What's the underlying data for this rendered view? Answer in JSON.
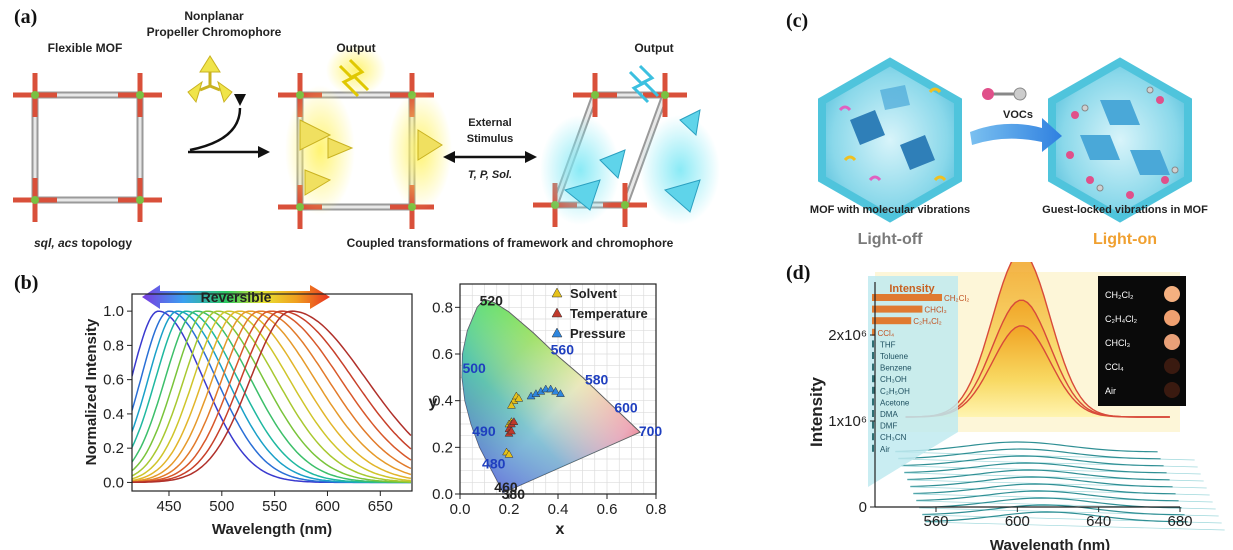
{
  "labels": {
    "a": "(a)",
    "b": "(b)",
    "c": "(c)",
    "d": "(d)"
  },
  "panel_a": {
    "flexible_mof": "Flexible MOF",
    "chromophore_line1": "Nonplanar",
    "chromophore_line2": "Propeller Chromophore",
    "output1": "Output",
    "output2": "Output",
    "stimulus_line1": "External",
    "stimulus_line2": "Stimulus",
    "stimulus_params": "T, P, Sol.",
    "topology_italic": "sql, acs",
    "topology_rest": " topology",
    "coupled": "Coupled transformations of framework and chromophore"
  },
  "panel_c": {
    "vocs": "VOCs",
    "left_caption": "MOF with molecular vibrations",
    "right_caption": "Guest-locked vibrations in MOF",
    "light_off": "Light-off",
    "light_on": "Light-on",
    "colors": {
      "light_off": "#7a7a7a",
      "light_on": "#f0a030",
      "hexagon": "#4fc4dc"
    }
  },
  "chart_data": [
    {
      "type": "line",
      "panel": "b-left",
      "xlabel": "Wavelength (nm)",
      "ylabel": "Normalized Intensity",
      "arrow_label": "Reversible",
      "xlim": [
        415,
        680
      ],
      "ylim": [
        -0.05,
        1.1
      ],
      "x_ticks": [
        "450",
        "500",
        "550",
        "600",
        "650"
      ],
      "y_ticks": [
        "0.0",
        "0.2",
        "0.4",
        "0.6",
        "0.8",
        "1.0"
      ],
      "peak_wavelengths_nm": [
        440,
        450,
        458,
        466,
        476,
        486,
        496,
        506,
        516,
        526,
        536,
        546,
        556,
        566
      ],
      "series_colors": [
        "#3a3acf",
        "#2a6fd6",
        "#1aa0c8",
        "#1fb8a0",
        "#3cbf6a",
        "#79c43a",
        "#a8c830",
        "#cfc52a",
        "#e2b52a",
        "#e69a2a",
        "#e27a2a",
        "#d8582a",
        "#c8402a",
        "#b0302a"
      ],
      "peak_value": 1.0
    },
    {
      "type": "scatter",
      "panel": "b-right",
      "chart_kind": "CIE 1931 chromaticity",
      "xlabel": "x",
      "ylabel": "y",
      "xlim": [
        0,
        0.8
      ],
      "ylim": [
        0,
        0.9
      ],
      "x_ticks": [
        "0.0",
        "0.2",
        "0.4",
        "0.6",
        "0.8"
      ],
      "y_ticks": [
        "0.0",
        "0.2",
        "0.4",
        "0.6",
        "0.8"
      ],
      "wavelength_labels": [
        {
          "text": "520",
          "x": 0.08,
          "y": 0.83
        },
        {
          "text": "560",
          "x": 0.37,
          "y": 0.62
        },
        {
          "text": "500",
          "x": 0.01,
          "y": 0.54
        },
        {
          "text": "580",
          "x": 0.51,
          "y": 0.49
        },
        {
          "text": "600",
          "x": 0.63,
          "y": 0.37
        },
        {
          "text": "490",
          "x": 0.05,
          "y": 0.27
        },
        {
          "text": "700",
          "x": 0.73,
          "y": 0.27
        },
        {
          "text": "480",
          "x": 0.09,
          "y": 0.13
        },
        {
          "text": "460",
          "x": 0.14,
          "y": 0.03
        },
        {
          "text": "380",
          "x": 0.17,
          "y": 0.0
        }
      ],
      "legend": [
        "Solvent",
        "Temperature",
        "Pressure"
      ],
      "legend_colors": [
        "#e6c21a",
        "#c0392b",
        "#2e86de"
      ],
      "series": [
        {
          "name": "Solvent",
          "points": [
            [
              0.22,
              0.4
            ],
            [
              0.23,
              0.42
            ],
            [
              0.21,
              0.38
            ],
            [
              0.24,
              0.41
            ],
            [
              0.2,
              0.3
            ],
            [
              0.21,
              0.31
            ],
            [
              0.19,
              0.18
            ],
            [
              0.2,
              0.17
            ]
          ]
        },
        {
          "name": "Temperature",
          "points": [
            [
              0.2,
              0.28
            ],
            [
              0.21,
              0.3
            ],
            [
              0.22,
              0.31
            ],
            [
              0.2,
              0.26
            ],
            [
              0.21,
              0.27
            ]
          ]
        },
        {
          "name": "Pressure",
          "points": [
            [
              0.29,
              0.42
            ],
            [
              0.31,
              0.43
            ],
            [
              0.33,
              0.44
            ],
            [
              0.35,
              0.45
            ],
            [
              0.37,
              0.45
            ],
            [
              0.39,
              0.44
            ],
            [
              0.41,
              0.43
            ]
          ]
        }
      ]
    },
    {
      "type": "line",
      "panel": "d",
      "xlabel": "Wavelength (nm)",
      "ylabel": "Intensity",
      "xlim": [
        530,
        680
      ],
      "ylim": [
        0,
        2500000
      ],
      "x_ticks": [
        "560",
        "600",
        "640",
        "680"
      ],
      "y_ticks": [
        {
          "value": 0,
          "label": "0"
        },
        {
          "value": 1000000,
          "label": "1x10⁶"
        },
        {
          "value": 2000000,
          "label": "2x10⁶"
        }
      ],
      "peak_nm": 602,
      "emitting_peaks": [
        2250000,
        1600000,
        1250000
      ],
      "inset_title": "Intensity",
      "inset_bars": [
        {
          "label": "CH₂Cl₂",
          "value": 100
        },
        {
          "label": "CHCl₃",
          "value": 72
        },
        {
          "label": "C₂H₄Cl₂",
          "value": 56
        },
        {
          "label": "CCl₄",
          "value": 5
        },
        {
          "label": "THF",
          "value": 2
        },
        {
          "label": "Toluene",
          "value": 2
        },
        {
          "label": "Benzene",
          "value": 2
        },
        {
          "label": "CH₃OH",
          "value": 4
        },
        {
          "label": "C₂H₅OH",
          "value": 4
        },
        {
          "label": "Acetone",
          "value": 2
        },
        {
          "label": "DMA",
          "value": 2
        },
        {
          "label": "DMF",
          "value": 2
        },
        {
          "label": "CH₃CN",
          "value": 2
        },
        {
          "label": "Air",
          "value": 2
        }
      ],
      "photo_labels": [
        "CH₂Cl₂",
        "C₂H₄Cl₂",
        "CHCl₃",
        "CCl₄",
        "Air"
      ]
    }
  ]
}
